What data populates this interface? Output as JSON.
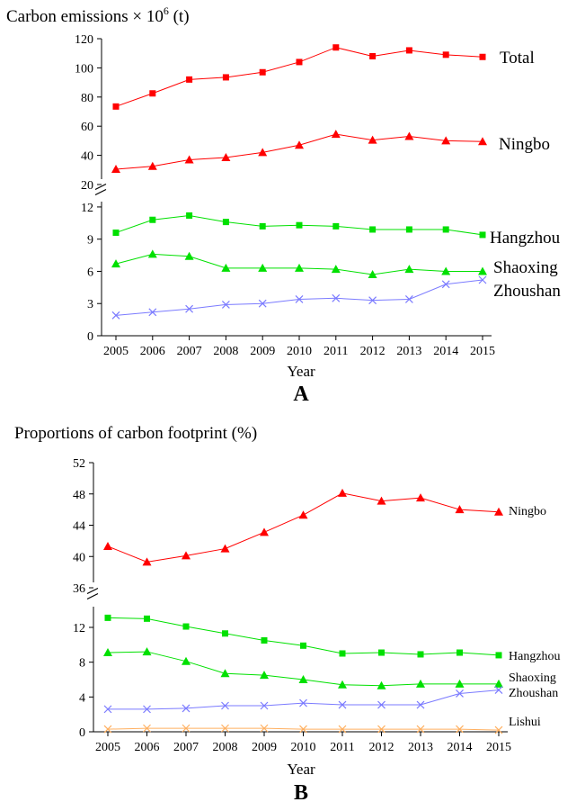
{
  "chart_data": [
    {
      "type": "line",
      "panel_label": "A",
      "ylabel": "Carbon emissions × 10",
      "ylabel_sup": "6",
      "ylabel_unit": " (t)",
      "xlabel": "Year",
      "x": [
        "2005",
        "2006",
        "2007",
        "2008",
        "2009",
        "2010",
        "2011",
        "2012",
        "2013",
        "2014",
        "2015"
      ],
      "y_broken_axis": true,
      "upper_ylim": [
        20,
        120
      ],
      "upper_ticks": [
        "20",
        "40",
        "60",
        "80",
        "100",
        "120"
      ],
      "lower_ylim": [
        0,
        13
      ],
      "lower_ticks": [
        "0",
        "3",
        "6",
        "9",
        "12"
      ],
      "series": [
        {
          "name": "Total",
          "segment": "upper",
          "color": "#ff0000",
          "marker": "square",
          "values": [
            73.5,
            82.5,
            92,
            93.5,
            97,
            104,
            114,
            108,
            112,
            109,
            107.5
          ]
        },
        {
          "name": "Ningbo",
          "segment": "upper",
          "color": "#ff0000",
          "marker": "triangle",
          "values": [
            30.5,
            32.5,
            37,
            38.5,
            42,
            47,
            54.5,
            50.5,
            53,
            50,
            49.5
          ]
        },
        {
          "name": "Hangzhou",
          "segment": "lower",
          "color": "#00e000",
          "marker": "square",
          "values": [
            9.6,
            10.8,
            11.2,
            10.6,
            10.2,
            10.3,
            10.2,
            9.9,
            9.9,
            9.9,
            9.4
          ]
        },
        {
          "name": "Shaoxing",
          "segment": "lower",
          "color": "#00e000",
          "marker": "triangle",
          "values": [
            6.7,
            7.6,
            7.4,
            6.3,
            6.3,
            6.3,
            6.2,
            5.7,
            6.2,
            6.0,
            6.0
          ]
        },
        {
          "name": "Zhoushan",
          "segment": "lower",
          "color": "#7b7bff",
          "marker": "x",
          "values": [
            1.9,
            2.2,
            2.5,
            2.9,
            3.0,
            3.4,
            3.5,
            3.3,
            3.4,
            4.8,
            5.2
          ]
        }
      ]
    },
    {
      "type": "line",
      "panel_label": "B",
      "ylabel": "Proportions of carbon footprint (%)",
      "xlabel": "Year",
      "x": [
        "2005",
        "2006",
        "2007",
        "2008",
        "2009",
        "2010",
        "2011",
        "2012",
        "2013",
        "2014",
        "2015"
      ],
      "y_broken_axis": true,
      "upper_ylim": [
        36,
        52
      ],
      "upper_ticks": [
        "36",
        "40",
        "44",
        "48",
        "52"
      ],
      "lower_ylim": [
        0,
        15
      ],
      "lower_ticks": [
        "0",
        "4",
        "8",
        "12"
      ],
      "series": [
        {
          "name": "Ningbo",
          "segment": "upper",
          "color": "#ff0000",
          "marker": "triangle",
          "values": [
            41.3,
            39.3,
            40.1,
            41.0,
            43.1,
            45.3,
            48.1,
            47.1,
            47.5,
            46.0,
            45.7
          ]
        },
        {
          "name": "Hangzhou",
          "segment": "lower",
          "color": "#00e000",
          "marker": "square",
          "values": [
            13.1,
            13.0,
            12.1,
            11.3,
            10.5,
            9.9,
            9.0,
            9.1,
            8.9,
            9.1,
            8.8
          ]
        },
        {
          "name": "Shaoxing",
          "segment": "lower",
          "color": "#00e000",
          "marker": "triangle",
          "values": [
            9.1,
            9.2,
            8.1,
            6.7,
            6.5,
            6.0,
            5.4,
            5.3,
            5.5,
            5.5,
            5.5
          ]
        },
        {
          "name": "Zhoushan",
          "segment": "lower",
          "color": "#7b7bff",
          "marker": "x",
          "values": [
            2.6,
            2.6,
            2.7,
            3.0,
            3.0,
            3.3,
            3.1,
            3.1,
            3.1,
            4.4,
            4.8
          ]
        },
        {
          "name": "Lishui",
          "segment": "lower",
          "color": "#ffb060",
          "marker": "x",
          "values": [
            0.3,
            0.4,
            0.4,
            0.4,
            0.4,
            0.3,
            0.3,
            0.3,
            0.3,
            0.3,
            0.2
          ]
        }
      ]
    }
  ]
}
